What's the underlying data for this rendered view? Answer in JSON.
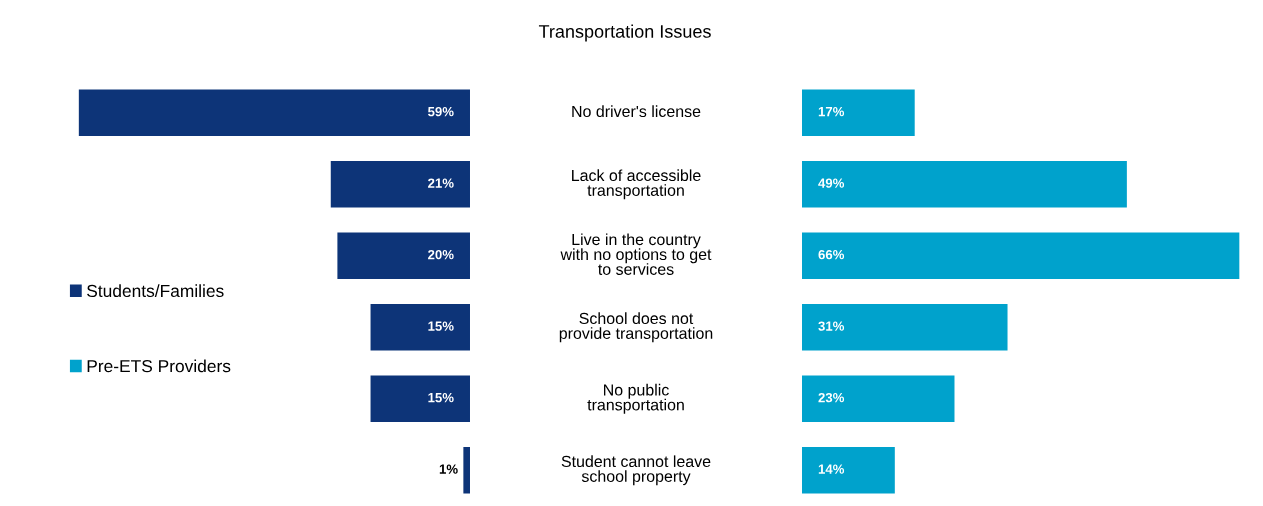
{
  "chart_data": [
    {
      "type": "bar",
      "orientation": "horizontal",
      "title": "Transportation Issues",
      "categories": [
        "No driver's license",
        "Lack of accessible\ntransportation",
        "Live in the country\nwith no options to get\nto services",
        "School does not\nprovide transportation",
        "No public\ntransportation",
        "Student cannot leave\nschool property"
      ],
      "series": [
        {
          "name": "Students/Families",
          "color": "#0d3478",
          "values": [
            59,
            21,
            20,
            15,
            15,
            1
          ],
          "value_labels": [
            "59%",
            "21%",
            "20%",
            "15%",
            "15%",
            "1%"
          ]
        }
      ],
      "legend": "left"
    },
    {
      "type": "bar",
      "orientation": "horizontal",
      "categories": [
        null,
        null,
        null,
        null,
        null,
        null
      ],
      "series": [
        {
          "name": "Pre-ETS Providers",
          "color": "#00a2cc",
          "values": [
            17,
            49,
            66,
            31,
            23,
            14
          ],
          "value_labels": [
            "17%",
            "49%",
            "66%",
            "31%",
            "23%",
            "14%"
          ]
        }
      ],
      "legend": "left"
    }
  ]
}
